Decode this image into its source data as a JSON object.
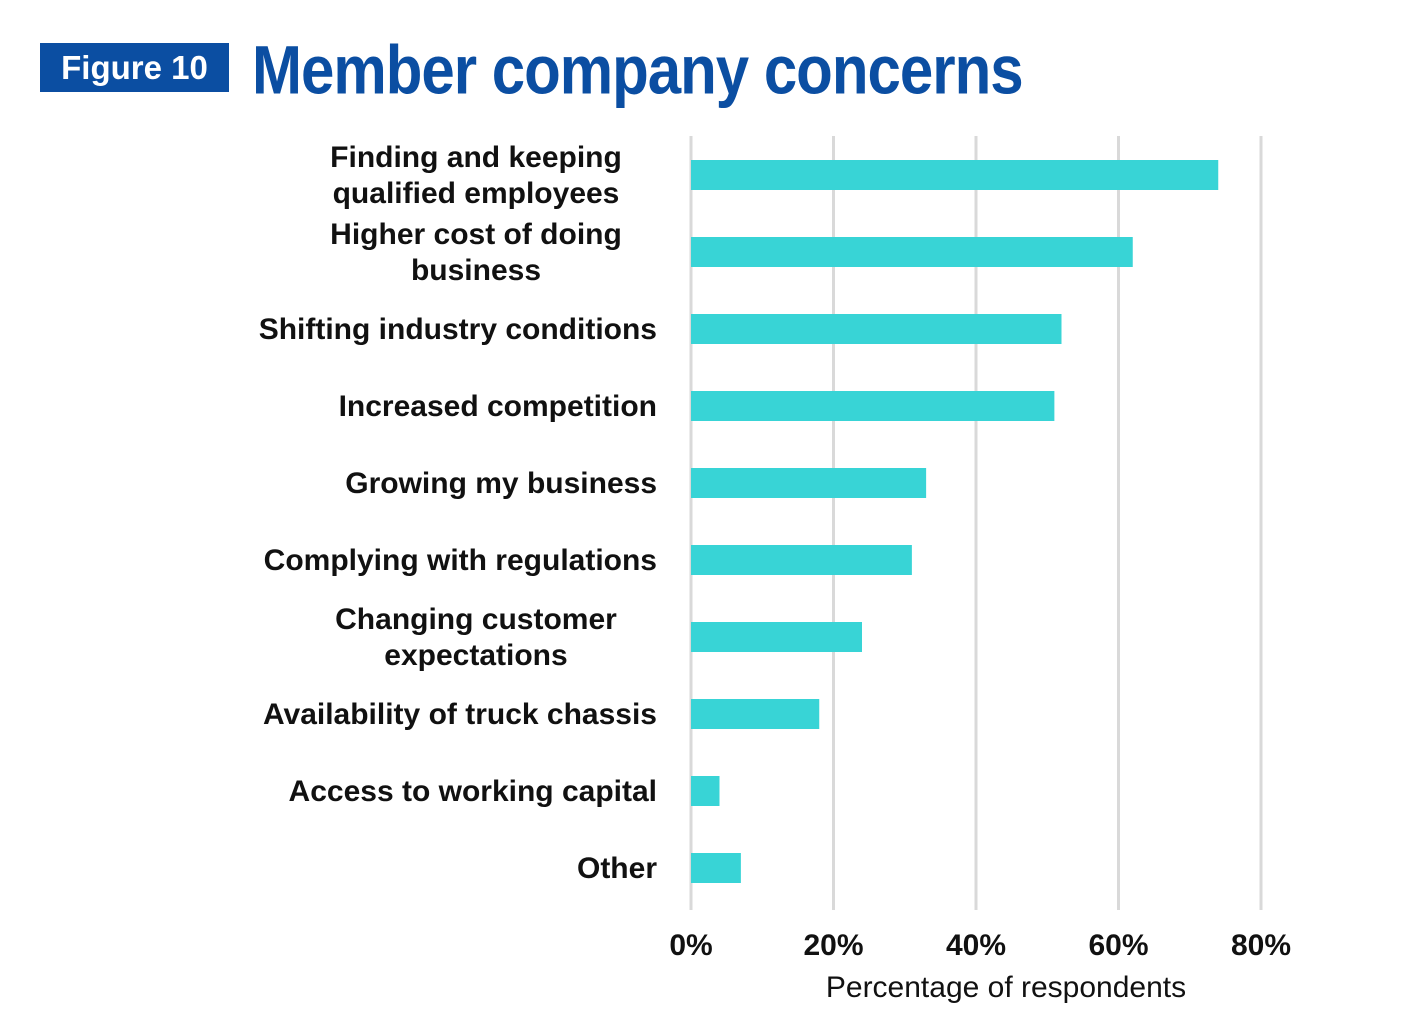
{
  "header": {
    "badge": "Figure 10",
    "title": "Member company concerns"
  },
  "chart_data": {
    "type": "bar",
    "orientation": "horizontal",
    "categories": [
      "Finding and keeping qualified employees",
      "Higher cost of doing business",
      "Shifting industry conditions",
      "Increased competition",
      "Growing my business",
      "Complying with regulations",
      "Changing customer expectations",
      "Availability of truck chassis",
      "Access to working capital",
      "Other"
    ],
    "category_lines": [
      [
        "Finding and keeping",
        "qualified employees"
      ],
      [
        "Higher cost of doing",
        "business"
      ],
      [
        "Shifting industry conditions"
      ],
      [
        "Increased competition"
      ],
      [
        "Growing my business"
      ],
      [
        "Complying with regulations"
      ],
      [
        "Changing customer",
        "expectations"
      ],
      [
        "Availability of truck chassis"
      ],
      [
        "Access to working capital"
      ],
      [
        "Other"
      ]
    ],
    "values": [
      74,
      62,
      52,
      51,
      33,
      31,
      24,
      18,
      4,
      7
    ],
    "xlabel": "Percentage of respondents",
    "xlim": [
      0,
      80
    ],
    "xticks": [
      0,
      20,
      40,
      60,
      80
    ],
    "xtick_labels": [
      "0%",
      "20%",
      "40%",
      "60%",
      "80%"
    ],
    "grid": true,
    "bar_color": "#38d4d6",
    "grid_color": "#d9d9d9"
  },
  "colors": {
    "accent": "#0b4ea2"
  }
}
